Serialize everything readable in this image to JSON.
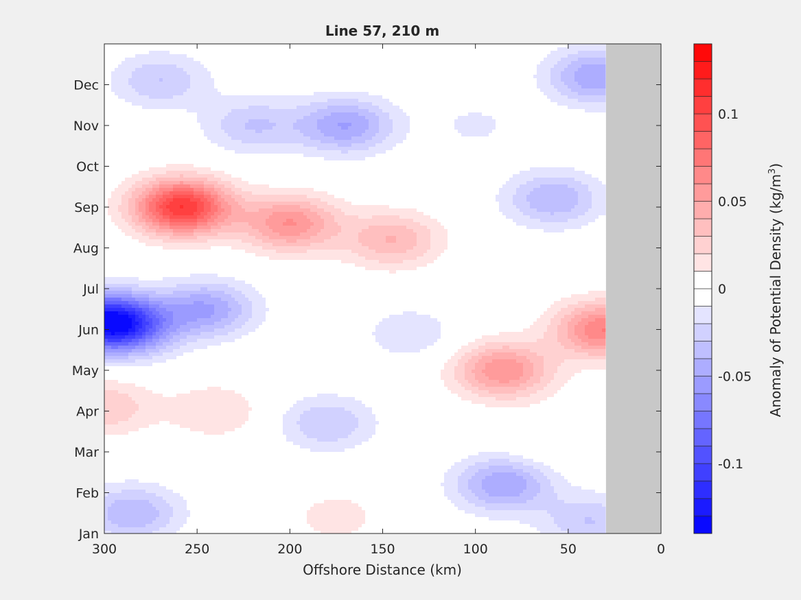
{
  "chart_data": {
    "type": "contour",
    "title": "Line 57, 210 m",
    "xlabel": "Offshore Distance (km)",
    "ylabel": "",
    "x_ticks": [
      300,
      250,
      200,
      150,
      100,
      50,
      0
    ],
    "x_tick_labels": [
      "300",
      "250",
      "200",
      "150",
      "100",
      "50",
      "0"
    ],
    "xlim": [
      300,
      0
    ],
    "y_ticks": [
      "Jan",
      "Feb",
      "Mar",
      "Apr",
      "May",
      "Jun",
      "Jul",
      "Aug",
      "Sep",
      "Oct",
      "Nov",
      "Dec"
    ],
    "no_data_region_km": [
      30,
      0
    ],
    "colorbar": {
      "label": "Anomaly of Potential Density (kg/m",
      "label_sup": "3",
      "label_end": ")",
      "range": [
        -0.14,
        0.14
      ],
      "levels": 28,
      "tick_values": [
        0.1,
        0.05,
        0,
        -0.05,
        -0.1
      ],
      "tick_labels": [
        "0.1",
        "0.05",
        "0",
        "-0.05",
        "-0.1"
      ],
      "neg_color": "#0000ff",
      "pos_color": "#ff0000",
      "zero_color": "#ffffff"
    },
    "features": [
      {
        "x_km": 258,
        "month": 8.0,
        "value": 0.11
      },
      {
        "x_km": 200,
        "month": 7.6,
        "value": 0.06
      },
      {
        "x_km": 145,
        "month": 7.2,
        "value": 0.04
      },
      {
        "x_km": 31,
        "month": 5.0,
        "value": 0.07
      },
      {
        "x_km": 85,
        "month": 4.0,
        "value": 0.06
      },
      {
        "x_km": 300,
        "month": 3.1,
        "value": 0.03
      },
      {
        "x_km": 240,
        "month": 3.0,
        "value": 0.02
      },
      {
        "x_km": 175,
        "month": 0.4,
        "value": 0.015
      },
      {
        "x_km": 60,
        "month": 2.3,
        "value": 0.01
      },
      {
        "x_km": 299,
        "month": 5.2,
        "value": -0.12
      },
      {
        "x_km": 285,
        "month": 5.0,
        "value": -0.04
      },
      {
        "x_km": 245,
        "month": 5.5,
        "value": -0.05
      },
      {
        "x_km": 135,
        "month": 4.9,
        "value": -0.018
      },
      {
        "x_km": 180,
        "month": 2.7,
        "value": -0.03
      },
      {
        "x_km": 85,
        "month": 1.2,
        "value": -0.05
      },
      {
        "x_km": 285,
        "month": 0.5,
        "value": -0.04
      },
      {
        "x_km": 170,
        "month": 10.0,
        "value": -0.05
      },
      {
        "x_km": 220,
        "month": 10.0,
        "value": -0.03
      },
      {
        "x_km": 270,
        "month": 11.1,
        "value": -0.03
      },
      {
        "x_km": 35,
        "month": 11.2,
        "value": -0.05
      },
      {
        "x_km": 58,
        "month": 8.2,
        "value": -0.04
      },
      {
        "x_km": 38,
        "month": 0.3,
        "value": -0.03
      },
      {
        "x_km": 100,
        "month": 10.0,
        "value": -0.012
      }
    ]
  }
}
